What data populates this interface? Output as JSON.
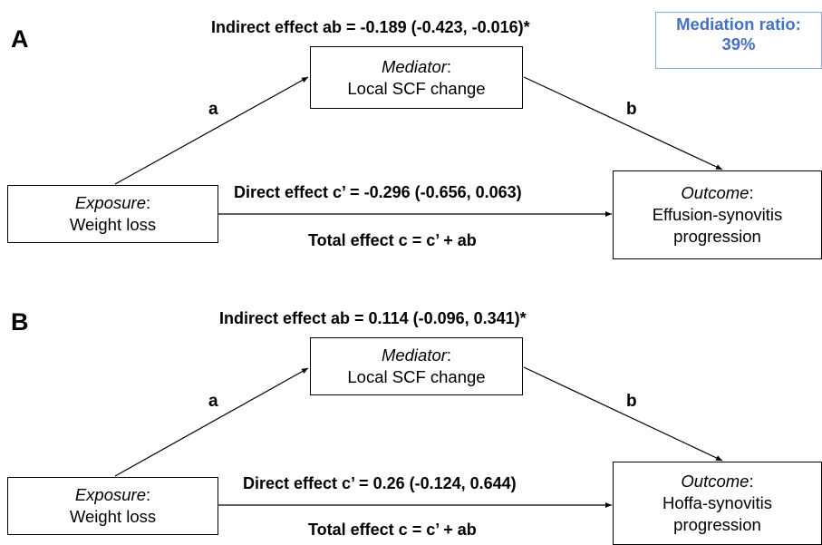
{
  "panel_a": {
    "letter": "A",
    "indirect_effect": "Indirect effect ab = -0.189 (-0.423, -0.016)*",
    "mediation_ratio_label": "Mediation ratio:",
    "mediation_ratio_value": "39%",
    "mediator_title": "Mediator",
    "mediator_value": "Local SCF change",
    "exposure_title": "Exposure",
    "exposure_value": "Weight loss",
    "outcome_title": "Outcome",
    "outcome_value_line1": "Effusion-synovitis",
    "outcome_value_line2": "progression",
    "path_a": "a",
    "path_b": "b",
    "direct_effect": "Direct effect c’ = -0.296 (-0.656, 0.063)",
    "total_effect": "Total effect c = c’ + ab"
  },
  "panel_b": {
    "letter": "B",
    "indirect_effect": "Indirect effect ab = 0.114 (-0.096, 0.341)*",
    "mediator_title": "Mediator",
    "mediator_value": "Local SCF change",
    "exposure_title": "Exposure",
    "exposure_value": "Weight loss",
    "outcome_title": "Outcome",
    "outcome_value_line1": "Hoffa-synovitis",
    "outcome_value_line2": "progression",
    "path_a": "a",
    "path_b": "b",
    "direct_effect": "Direct effect c’ = 0.26 (-0.124, 0.644)",
    "total_effect": "Total effect c = c’ + ab"
  }
}
